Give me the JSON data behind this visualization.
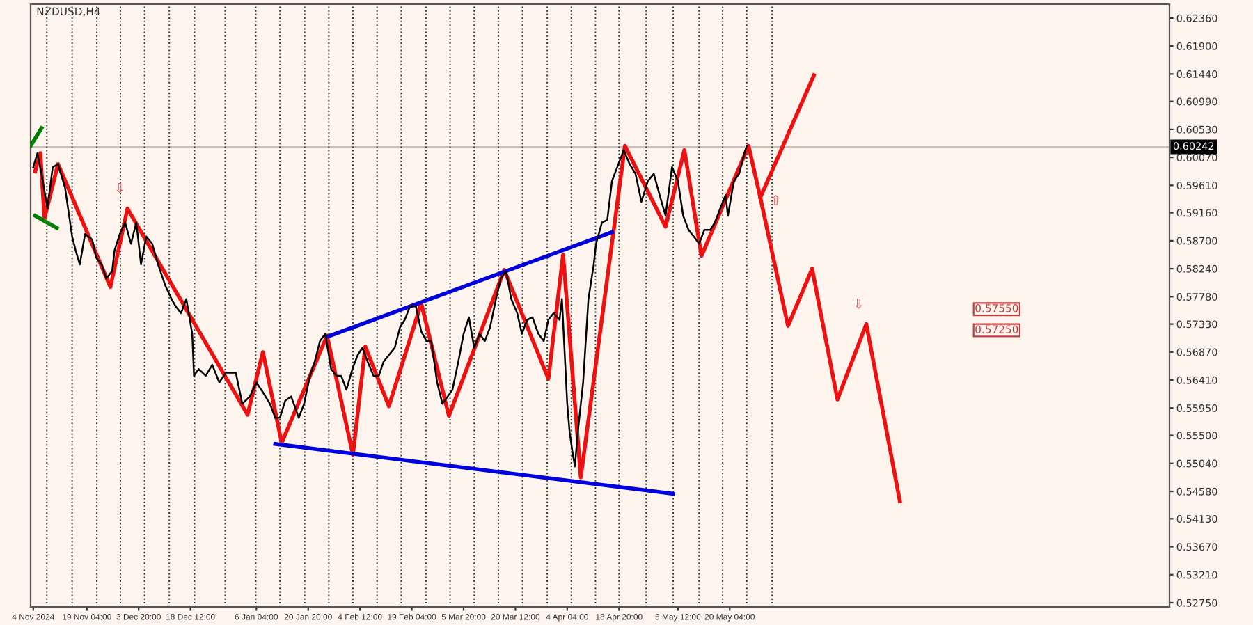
{
  "chart_data": {
    "type": "line",
    "title": "NZDUSD,H4",
    "xlim": [
      "2024-11-03T06:00",
      "2025-09-21T16:00"
    ],
    "ylim": [
      0.52681,
      0.62588
    ],
    "xticks": [
      {
        "value": "2024-11-04T00:00",
        "label": "4 Nov 2024"
      },
      {
        "value": "2024-11-19T04:00",
        "label": "19 Nov 04:00"
      },
      {
        "value": "2024-12-03T20:00",
        "label": "3 Dec 20:00"
      },
      {
        "value": "2024-12-18T12:00",
        "label": "18 Dec 12:00"
      },
      {
        "value": "2025-01-06T04:00",
        "label": "6 Jan 04:00"
      },
      {
        "value": "2025-01-20T20:00",
        "label": "20 Jan 20:00"
      },
      {
        "value": "2025-02-04T12:00",
        "label": "4 Feb 12:00"
      },
      {
        "value": "2025-02-19T04:00",
        "label": "19 Feb 04:00"
      },
      {
        "value": "2025-03-05T20:00",
        "label": "5 Mar 20:00"
      },
      {
        "value": "2025-03-20T12:00",
        "label": "20 Mar 12:00"
      },
      {
        "value": "2025-04-04T04:00",
        "label": "4 Apr 04:00"
      },
      {
        "value": "2025-04-18T20:00",
        "label": "18 Apr 20:00"
      },
      {
        "value": "2025-05-05T12:00",
        "label": "5 May 12:00"
      },
      {
        "value": "2025-05-20T04:00",
        "label": "20 May 04:00"
      }
    ],
    "yticks": [
      {
        "value": 0.6236,
        "label": "0.62360"
      },
      {
        "value": 0.619,
        "label": "0.61900"
      },
      {
        "value": 0.6144,
        "label": "0.61440"
      },
      {
        "value": 0.6099,
        "label": "0.60990"
      },
      {
        "value": 0.6053,
        "label": "0.60530"
      },
      {
        "value": 0.6007,
        "label": "0.60070"
      },
      {
        "value": 0.5961,
        "label": "0.59610"
      },
      {
        "value": 0.5916,
        "label": "0.59160"
      },
      {
        "value": 0.587,
        "label": "0.58700"
      },
      {
        "value": 0.5824,
        "label": "0.58240"
      },
      {
        "value": 0.5778,
        "label": "0.57780"
      },
      {
        "value": 0.5733,
        "label": "0.57330"
      },
      {
        "value": 0.5687,
        "label": "0.56870"
      },
      {
        "value": 0.5641,
        "label": "0.56410"
      },
      {
        "value": 0.5595,
        "label": "0.55950"
      },
      {
        "value": 0.555,
        "label": "0.55500"
      },
      {
        "value": 0.5504,
        "label": "0.55040"
      },
      {
        "value": 0.5458,
        "label": "0.54580"
      },
      {
        "value": 0.5413,
        "label": "0.54130"
      },
      {
        "value": 0.5367,
        "label": "0.53670"
      },
      {
        "value": 0.5321,
        "label": "0.53210"
      },
      {
        "value": 0.5275,
        "label": "0.52750"
      }
    ],
    "grid": false,
    "legend": false,
    "marker": "none",
    "line_style": "solid",
    "series": [
      {
        "color": "#000000",
        "x": [
          "2024-11-04T00:00",
          "2024-11-05T04:00",
          "2024-11-06T08:00",
          "2024-11-08T00:00",
          "2024-11-09T12:00",
          "2024-11-11T00:00",
          "2024-11-13T00:00",
          "2024-11-15T00:00",
          "2024-11-16T00:00",
          "2024-11-17T04:00",
          "2024-11-18T16:00",
          "2024-11-20T16:00",
          "2024-11-21T20:00",
          "2024-11-23T08:00",
          "2024-11-24T16:00",
          "2024-11-26T08:00",
          "2024-11-27T00:00",
          "2024-11-28T12:00",
          "2024-11-30T00:00",
          "2024-12-01T16:00",
          "2024-12-03T04:00",
          "2024-12-04T12:00",
          "2024-12-06T00:00",
          "2024-12-07T16:00",
          "2024-12-09T08:00",
          "2024-12-11T08:00",
          "2024-12-13T04:00",
          "2024-12-14T08:00",
          "2024-12-15T20:00",
          "2024-12-17T08:00",
          "2024-12-19T00:00",
          "2024-12-19T12:00",
          "2024-12-20T20:00",
          "2024-12-22T20:00",
          "2024-12-24T16:00",
          "2024-12-26T16:00",
          "2024-12-28T12:00",
          "2024-12-31T08:00",
          "2025-01-02T04:00",
          "2025-01-04T08:00",
          "2025-01-06T04:00",
          "2025-01-08T00:00",
          "2025-01-10T00:00",
          "2025-01-11T12:00",
          "2025-01-12T20:00",
          "2025-01-14T08:00",
          "2025-01-16T00:00",
          "2025-01-18T04:00",
          "2025-01-19T16:00",
          "2025-01-21T08:00",
          "2025-01-22T16:00",
          "2025-01-24T04:00",
          "2025-01-25T16:00",
          "2025-01-27T08:00",
          "2025-01-28T20:00",
          "2025-01-30T04:00",
          "2025-01-31T16:00",
          "2025-02-02T08:00",
          "2025-02-03T20:00",
          "2025-02-05T04:00",
          "2025-02-06T16:00",
          "2025-02-08T08:00",
          "2025-02-09T20:00",
          "2025-02-11T04:00",
          "2025-02-12T16:00",
          "2025-02-14T08:00",
          "2025-02-15T20:00",
          "2025-02-17T04:00",
          "2025-02-18T16:00",
          "2025-02-20T08:00",
          "2025-02-21T20:00",
          "2025-02-23T08:00",
          "2025-02-24T16:00",
          "2025-02-26T08:00",
          "2025-02-27T20:00",
          "2025-03-01T08:00",
          "2025-03-02T16:00",
          "2025-03-04T08:00",
          "2025-03-05T20:00",
          "2025-03-07T08:00",
          "2025-03-08T20:00",
          "2025-03-10T08:00",
          "2025-03-11T20:00",
          "2025-03-13T08:00",
          "2025-03-15T00:00",
          "2025-03-16T08:00",
          "2025-03-17T20:00",
          "2025-03-19T08:00",
          "2025-03-21T00:00",
          "2025-03-22T08:00",
          "2025-03-23T20:00",
          "2025-03-25T08:00",
          "2025-03-27T00:00",
          "2025-03-28T12:00",
          "2025-03-29T20:00",
          "2025-03-31T08:00",
          "2025-04-02T00:00",
          "2025-04-02T16:00",
          "2025-04-04T04:00",
          "2025-04-04T20:00",
          "2025-04-05T16:00",
          "2025-04-06T08:00",
          "2025-04-07T04:00",
          "2025-04-08T16:00",
          "2025-04-10T04:00",
          "2025-04-11T16:00",
          "2025-04-12T08:00",
          "2025-04-14T00:00",
          "2025-04-15T12:00",
          "2025-04-16T20:00",
          "2025-04-18T08:00",
          "2025-04-20T04:00",
          "2025-04-21T20:00",
          "2025-04-23T12:00",
          "2025-04-25T04:00",
          "2025-04-27T00:00",
          "2025-04-28T16:00",
          "2025-04-30T08:00",
          "2025-05-02T00:00",
          "2025-05-03T20:00",
          "2025-05-05T12:00",
          "2025-05-07T00:00",
          "2025-05-08T12:00",
          "2025-05-10T00:00",
          "2025-05-11T12:00",
          "2025-05-13T00:00",
          "2025-05-14T16:00",
          "2025-05-16T00:00",
          "2025-05-17T12:00",
          "2025-05-19T00:00",
          "2025-05-19T16:00",
          "2025-05-21T08:00",
          "2025-05-22T20:00",
          "2025-05-24T08:00",
          "2025-05-25T00:00"
        ],
        "values": [
          0.5991,
          0.6014,
          0.598,
          0.5923,
          0.5991,
          0.5996,
          0.5957,
          0.5877,
          0.5854,
          0.5831,
          0.5881,
          0.5872,
          0.5842,
          0.5831,
          0.5808,
          0.582,
          0.5854,
          0.5881,
          0.59,
          0.5865,
          0.59,
          0.5831,
          0.5877,
          0.5865,
          0.5831,
          0.5797,
          0.5774,
          0.5762,
          0.5751,
          0.5774,
          0.5717,
          0.5648,
          0.5659,
          0.5648,
          0.5666,
          0.5637,
          0.5653,
          0.5653,
          0.5602,
          0.5614,
          0.5637,
          0.5621,
          0.5602,
          0.5579,
          0.5579,
          0.5607,
          0.5614,
          0.5579,
          0.5602,
          0.5648,
          0.5671,
          0.5705,
          0.5717,
          0.5659,
          0.5648,
          0.5648,
          0.5625,
          0.5659,
          0.5682,
          0.5694,
          0.5671,
          0.5648,
          0.5648,
          0.5671,
          0.5682,
          0.5694,
          0.5728,
          0.574,
          0.5762,
          0.5762,
          0.5721,
          0.5705,
          0.5705,
          0.5637,
          0.5602,
          0.5614,
          0.5625,
          0.5671,
          0.5717,
          0.5744,
          0.5694,
          0.5717,
          0.5705,
          0.5728,
          0.5774,
          0.5808,
          0.582,
          0.5774,
          0.5751,
          0.5717,
          0.574,
          0.5744,
          0.5717,
          0.5705,
          0.574,
          0.5751,
          0.574,
          0.5774,
          0.5602,
          0.5556,
          0.5522,
          0.5499,
          0.5556,
          0.5637,
          0.5774,
          0.5831,
          0.5865,
          0.59,
          0.5904,
          0.5968,
          0.5991,
          0.6019,
          0.5996,
          0.598,
          0.5934,
          0.5968,
          0.598,
          0.5945,
          0.5911,
          0.5991,
          0.5968,
          0.5911,
          0.5888,
          0.5877,
          0.5865,
          0.5888,
          0.5888,
          0.59,
          0.5923,
          0.5945,
          0.5911,
          0.5968,
          0.598,
          0.6014,
          0.6026
        ]
      },
      {
        "color": "#ee1111",
        "x": [
          "2024-11-04T12:00",
          "2024-11-06T00:00",
          "2024-11-07T04:00",
          "2024-11-11T00:00",
          "2024-11-25T20:00",
          "2024-11-30T16:00",
          "2025-01-03T16:00",
          "2025-01-08T00:00",
          "2025-01-13T08:00",
          "2025-01-26T04:00",
          "2025-02-02T12:00",
          "2025-02-06T00:00",
          "2025-02-12T16:00",
          "2025-02-21T20:00",
          "2025-03-01T16:00",
          "2025-03-17T08:00",
          "2025-03-29T20:00",
          "2025-04-03T00:00",
          "2025-04-08T00:00",
          "2025-04-20T12:00",
          "2025-05-02T00:00",
          "2025-05-07T08:00",
          "2025-05-12T04:00",
          "2025-05-25T12:00",
          "2025-05-28T20:00",
          "2025-06-05T16:00",
          "2025-06-12T12:00",
          "2025-06-19T16:00",
          "2025-06-27T20:00",
          "2025-07-07T08:00"
        ],
        "values": [
          0.5984,
          0.6014,
          0.5907,
          0.5996,
          0.5794,
          0.5923,
          0.5584,
          0.5687,
          0.5538,
          0.5714,
          0.5518,
          0.5696,
          0.5598,
          0.5767,
          0.5582,
          0.5822,
          0.5643,
          0.5847,
          0.5481,
          0.6026,
          0.5893,
          0.6019,
          0.5845,
          0.6026,
          0.5941,
          0.573,
          0.5824,
          0.5609,
          0.5733,
          0.5442
        ]
      },
      {
        "color": "#ee1111",
        "x": [
          "2025-05-28T20:00",
          "2025-06-13T00:00"
        ],
        "values": [
          0.5941,
          0.6142
        ]
      },
      {
        "color": "#0000dd",
        "x": [
          "2025-01-26T04:00",
          "2025-04-16T20:00"
        ],
        "values": [
          0.5712,
          0.5884
        ]
      },
      {
        "color": "#0000dd",
        "x": [
          "2025-01-11T12:00",
          "2025-05-04T04:00"
        ],
        "values": [
          0.5536,
          0.5454
        ]
      },
      {
        "color": "#008000",
        "x": [
          "2024-11-03T06:00",
          "2024-11-06T08:00"
        ],
        "values": [
          0.6026,
          0.6055
        ]
      },
      {
        "color": "#008000",
        "x": [
          "2024-11-04T12:00",
          "2024-11-10T16:00"
        ],
        "values": [
          0.5911,
          0.5891
        ]
      }
    ],
    "ref_lines": [
      {
        "axis": "y",
        "value": 0.60242,
        "label": "0.60242",
        "color": "#c8c0bc",
        "line_style": "solid"
      },
      {
        "axis": "x",
        "value": "2024-11-07T20:00",
        "line_style": "dotted",
        "color": "#333333"
      },
      {
        "axis": "x",
        "value": "2024-11-15T00:00",
        "line_style": "dotted",
        "color": "#333333"
      },
      {
        "axis": "x",
        "value": "2024-11-22T00:00",
        "line_style": "dotted",
        "color": "#333333"
      },
      {
        "axis": "x",
        "value": "2024-11-28T16:00",
        "line_style": "dotted",
        "color": "#333333"
      },
      {
        "axis": "x",
        "value": "2024-12-05T12:00",
        "line_style": "dotted",
        "color": "#333333"
      },
      {
        "axis": "x",
        "value": "2024-12-12T12:00",
        "line_style": "dotted",
        "color": "#333333"
      },
      {
        "axis": "x",
        "value": "2024-12-19T16:00",
        "line_style": "dotted",
        "color": "#333333"
      },
      {
        "axis": "x",
        "value": "2024-12-28T08:00",
        "line_style": "dotted",
        "color": "#333333"
      },
      {
        "axis": "x",
        "value": "2025-01-06T00:00",
        "line_style": "dotted",
        "color": "#333333"
      },
      {
        "axis": "x",
        "value": "2025-01-12T20:00",
        "line_style": "dotted",
        "color": "#333333"
      },
      {
        "axis": "x",
        "value": "2025-01-19T20:00",
        "line_style": "dotted",
        "color": "#333333"
      },
      {
        "axis": "x",
        "value": "2025-01-26T16:00",
        "line_style": "dotted",
        "color": "#333333"
      },
      {
        "axis": "x",
        "value": "2025-02-02T12:00",
        "line_style": "dotted",
        "color": "#333333"
      },
      {
        "axis": "x",
        "value": "2025-02-09T08:00",
        "line_style": "dotted",
        "color": "#333333"
      },
      {
        "axis": "x",
        "value": "2025-02-16T04:00",
        "line_style": "dotted",
        "color": "#333333"
      },
      {
        "axis": "x",
        "value": "2025-02-23T04:00",
        "line_style": "dotted",
        "color": "#333333"
      },
      {
        "axis": "x",
        "value": "2025-03-02T00:00",
        "line_style": "dotted",
        "color": "#333333"
      },
      {
        "axis": "x",
        "value": "2025-03-08T20:00",
        "line_style": "dotted",
        "color": "#333333"
      },
      {
        "axis": "x",
        "value": "2025-03-15T16:00",
        "line_style": "dotted",
        "color": "#333333"
      },
      {
        "axis": "x",
        "value": "2025-03-22T12:00",
        "line_style": "dotted",
        "color": "#333333"
      },
      {
        "axis": "x",
        "value": "2025-03-29T12:00",
        "line_style": "dotted",
        "color": "#333333"
      },
      {
        "axis": "x",
        "value": "2025-04-05T08:00",
        "line_style": "dotted",
        "color": "#333333"
      },
      {
        "axis": "x",
        "value": "2025-04-12T04:00",
        "line_style": "dotted",
        "color": "#333333"
      },
      {
        "axis": "x",
        "value": "2025-04-18T20:00",
        "line_style": "dotted",
        "color": "#333333"
      },
      {
        "axis": "x",
        "value": "2025-04-26T12:00",
        "line_style": "dotted",
        "color": "#333333"
      },
      {
        "axis": "x",
        "value": "2025-05-04T04:00",
        "line_style": "dotted",
        "color": "#333333"
      },
      {
        "axis": "x",
        "value": "2025-05-11T12:00",
        "line_style": "dotted",
        "color": "#333333"
      },
      {
        "axis": "x",
        "value": "2025-05-18T04:00",
        "line_style": "dotted",
        "color": "#333333"
      },
      {
        "axis": "x",
        "value": "2025-05-25T00:00",
        "line_style": "dotted",
        "color": "#333333"
      },
      {
        "axis": "x",
        "value": "2025-06-01T04:00",
        "line_style": "dotted",
        "color": "#333333"
      }
    ],
    "annotations": [
      {
        "text": "⇩",
        "x": "2024-11-30T16:00",
        "y": 0.5923
      },
      {
        "text": "⇧",
        "x": "2025-05-28T20:00",
        "y": 0.5941
      },
      {
        "text": "⇩",
        "x": "2025-06-27T20:00",
        "y": 0.5733
      },
      "0.57550",
      "0.57250"
    ]
  }
}
